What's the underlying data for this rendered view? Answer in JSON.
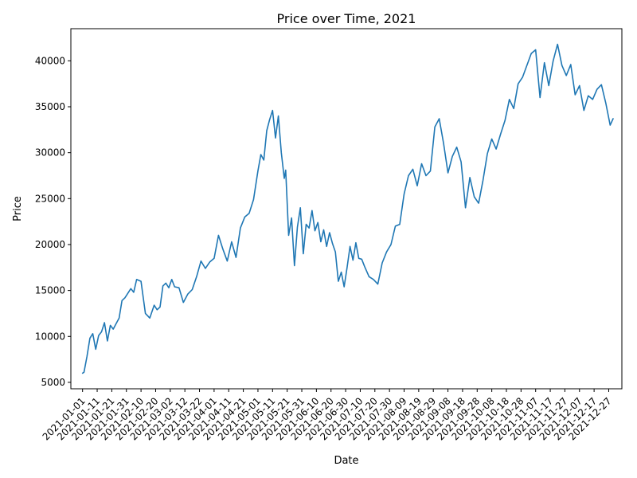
{
  "chart_data": {
    "type": "line",
    "title": "Price over Time, 2021",
    "xlabel": "Date",
    "ylabel": "Price",
    "x_range": [
      "2020-12-24",
      "2022-01-05"
    ],
    "ylim": [
      4300,
      43500
    ],
    "grid": false,
    "line_color": "#1f77b4",
    "x_ticks": [
      "2021-01-01",
      "2021-01-11",
      "2021-01-21",
      "2021-01-31",
      "2021-02-10",
      "2021-02-20",
      "2021-03-02",
      "2021-03-12",
      "2021-03-22",
      "2021-04-01",
      "2021-04-11",
      "2021-04-21",
      "2021-05-01",
      "2021-05-11",
      "2021-05-21",
      "2021-05-31",
      "2021-06-10",
      "2021-06-20",
      "2021-06-30",
      "2021-07-10",
      "2021-07-20",
      "2021-07-30",
      "2021-08-09",
      "2021-08-19",
      "2021-08-29",
      "2021-09-08",
      "2021-09-18",
      "2021-09-28",
      "2021-10-08",
      "2021-10-18",
      "2021-10-28",
      "2021-11-07",
      "2021-11-17",
      "2021-11-27",
      "2021-12-07",
      "2021-12-17",
      "2021-12-27"
    ],
    "y_ticks": [
      5000,
      10000,
      15000,
      20000,
      25000,
      30000,
      35000,
      40000
    ],
    "series": [
      {
        "x": [
          "2021-01-01",
          "2021-01-02",
          "2021-01-04",
          "2021-01-06",
          "2021-01-08",
          "2021-01-10",
          "2021-01-12",
          "2021-01-14",
          "2021-01-16",
          "2021-01-18",
          "2021-01-20",
          "2021-01-22",
          "2021-01-24",
          "2021-01-26",
          "2021-01-28",
          "2021-01-30",
          "2021-02-01",
          "2021-02-03",
          "2021-02-05",
          "2021-02-07",
          "2021-02-10",
          "2021-02-13",
          "2021-02-16",
          "2021-02-19",
          "2021-02-21",
          "2021-02-23",
          "2021-02-25",
          "2021-02-27",
          "2021-03-01",
          "2021-03-03",
          "2021-03-05",
          "2021-03-08",
          "2021-03-11",
          "2021-03-14",
          "2021-03-17",
          "2021-03-20",
          "2021-03-23",
          "2021-03-26",
          "2021-03-29",
          "2021-04-01",
          "2021-04-04",
          "2021-04-07",
          "2021-04-10",
          "2021-04-13",
          "2021-04-16",
          "2021-04-19",
          "2021-04-22",
          "2021-04-25",
          "2021-04-28",
          "2021-05-01",
          "2021-05-03",
          "2021-05-05",
          "2021-05-07",
          "2021-05-09",
          "2021-05-11",
          "2021-05-13",
          "2021-05-15",
          "2021-05-17",
          "2021-05-19",
          "2021-05-20",
          "2021-05-22",
          "2021-05-24",
          "2021-05-26",
          "2021-05-28",
          "2021-05-30",
          "2021-06-01",
          "2021-06-03",
          "2021-06-05",
          "2021-06-07",
          "2021-06-09",
          "2021-06-11",
          "2021-06-13",
          "2021-06-15",
          "2021-06-17",
          "2021-06-19",
          "2021-06-21",
          "2021-06-23",
          "2021-06-25",
          "2021-06-27",
          "2021-06-29",
          "2021-07-01",
          "2021-07-03",
          "2021-07-05",
          "2021-07-07",
          "2021-07-09",
          "2021-07-11",
          "2021-07-13",
          "2021-07-16",
          "2021-07-19",
          "2021-07-22",
          "2021-07-25",
          "2021-07-28",
          "2021-07-31",
          "2021-08-03",
          "2021-08-06",
          "2021-08-09",
          "2021-08-12",
          "2021-08-15",
          "2021-08-18",
          "2021-08-21",
          "2021-08-24",
          "2021-08-27",
          "2021-08-30",
          "2021-09-02",
          "2021-09-05",
          "2021-09-08",
          "2021-09-11",
          "2021-09-14",
          "2021-09-17",
          "2021-09-20",
          "2021-09-23",
          "2021-09-26",
          "2021-09-29",
          "2021-10-02",
          "2021-10-05",
          "2021-10-08",
          "2021-10-11",
          "2021-10-14",
          "2021-10-17",
          "2021-10-20",
          "2021-10-23",
          "2021-10-26",
          "2021-10-29",
          "2021-11-01",
          "2021-11-04",
          "2021-11-07",
          "2021-11-10",
          "2021-11-13",
          "2021-11-16",
          "2021-11-19",
          "2021-11-22",
          "2021-11-25",
          "2021-11-28",
          "2021-12-01",
          "2021-12-04",
          "2021-12-07",
          "2021-12-10",
          "2021-12-13",
          "2021-12-16",
          "2021-12-19",
          "2021-12-22",
          "2021-12-25",
          "2021-12-28",
          "2021-12-30"
        ],
        "y": [
          6000,
          6100,
          7800,
          9800,
          10300,
          8600,
          10100,
          10500,
          11500,
          9500,
          11200,
          10800,
          11400,
          12000,
          13900,
          14200,
          14700,
          15200,
          14800,
          16200,
          16000,
          12500,
          12000,
          13400,
          12900,
          13200,
          15500,
          15800,
          15300,
          16200,
          15400,
          15300,
          13700,
          14600,
          15100,
          16500,
          18200,
          17400,
          18100,
          18500,
          21000,
          19500,
          18200,
          20300,
          18600,
          21800,
          23000,
          23400,
          24900,
          28000,
          29800,
          29200,
          32400,
          33600,
          34600,
          31600,
          34000,
          30000,
          27200,
          28100,
          21000,
          22900,
          17700,
          21900,
          24000,
          19000,
          22200,
          21800,
          23700,
          21500,
          22400,
          20300,
          21600,
          19800,
          21300,
          20100,
          19200,
          16000,
          17000,
          15400,
          17500,
          19800,
          18300,
          20200,
          18500,
          18400,
          17600,
          16500,
          16200,
          15700,
          18000,
          19200,
          20000,
          22000,
          22200,
          25500,
          27500,
          28200,
          26400,
          28800,
          27500,
          28000,
          32800,
          33700,
          31000,
          27800,
          29600,
          30600,
          29000,
          24000,
          27300,
          25200,
          24500,
          27000,
          29900,
          31500,
          30400,
          32000,
          33500,
          35800,
          34800,
          37500,
          38200,
          39500,
          40800,
          41200,
          36000,
          39800,
          37300,
          40000,
          41800,
          39500,
          38400,
          39600,
          36300,
          37300,
          34600,
          36200,
          35800,
          36900,
          37400,
          35400,
          33000,
          33700
        ]
      }
    ]
  }
}
